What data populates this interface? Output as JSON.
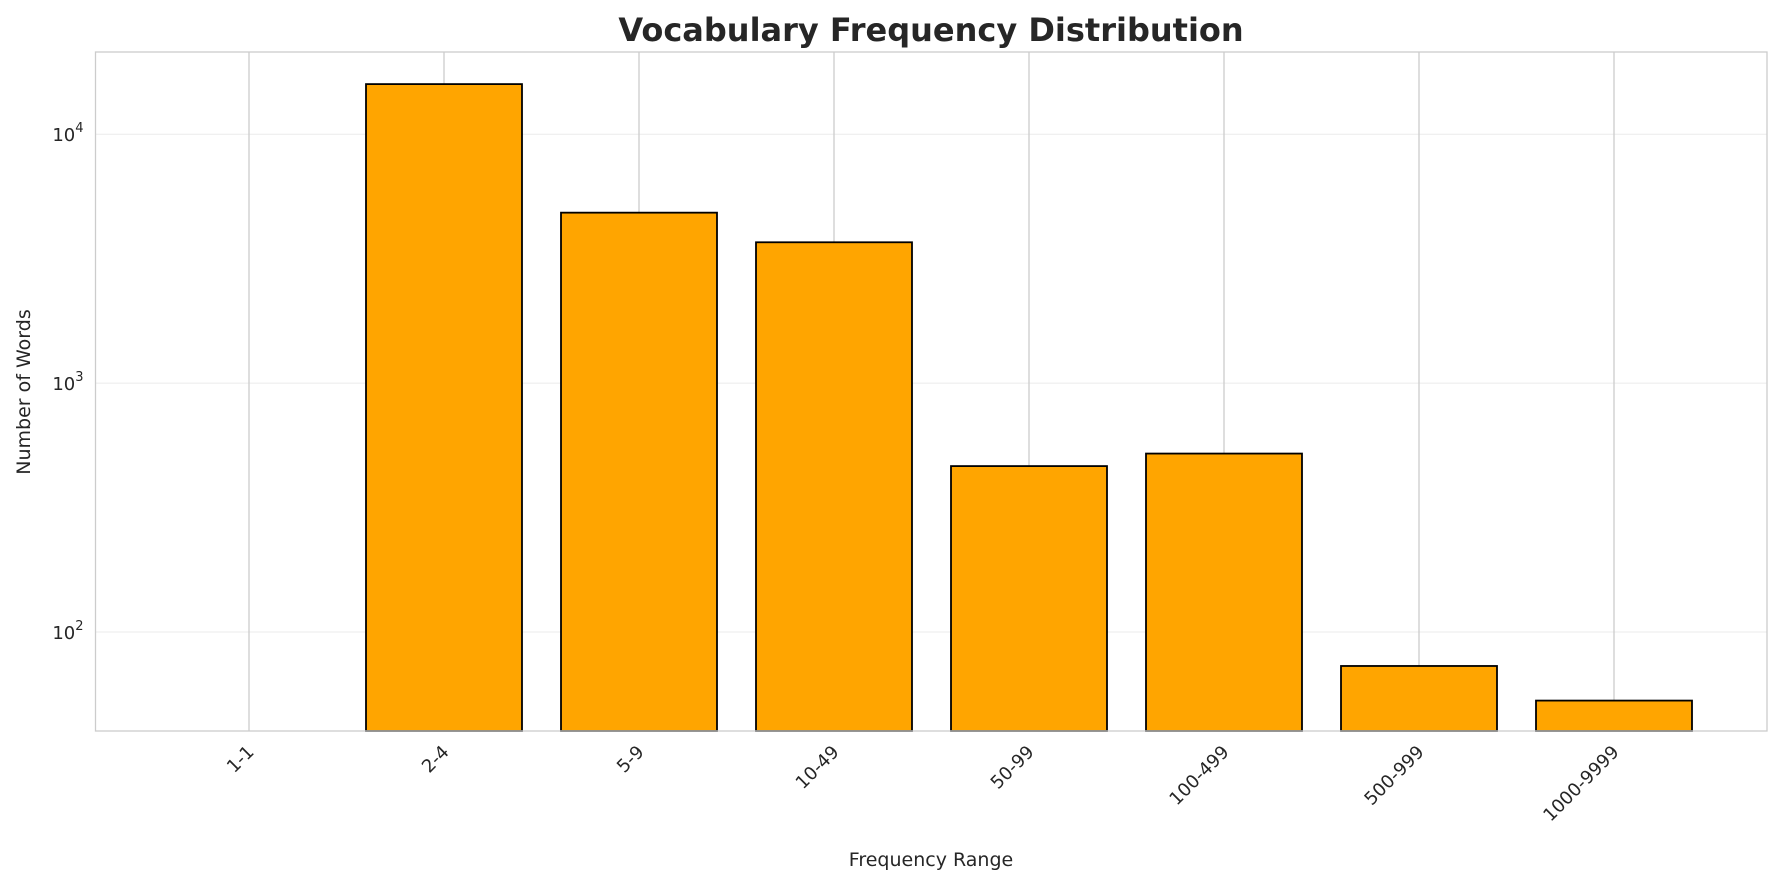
{
  "chart_data": {
    "type": "bar",
    "title": "Vocabulary Frequency Distribution",
    "xlabel": "Frequency Range",
    "ylabel": "Number of Words",
    "yscale": "log",
    "ylim": [
      40,
      21400
    ],
    "yticks": [
      {
        "value": 100,
        "label": "10",
        "exp": "2"
      },
      {
        "value": 1000,
        "label": "10",
        "exp": "3"
      },
      {
        "value": 10000,
        "label": "10",
        "exp": "4"
      }
    ],
    "categories": [
      "1-1",
      "2-4",
      "5-9",
      "10-49",
      "50-99",
      "100-499",
      "500-999",
      "1000-9999"
    ],
    "values": [
      0,
      15900,
      4840,
      3680,
      464,
      521,
      73,
      53
    ],
    "bar_color": "#FFA500",
    "edge_color": "#000000",
    "grid": true,
    "tick_rotation": 45
  }
}
